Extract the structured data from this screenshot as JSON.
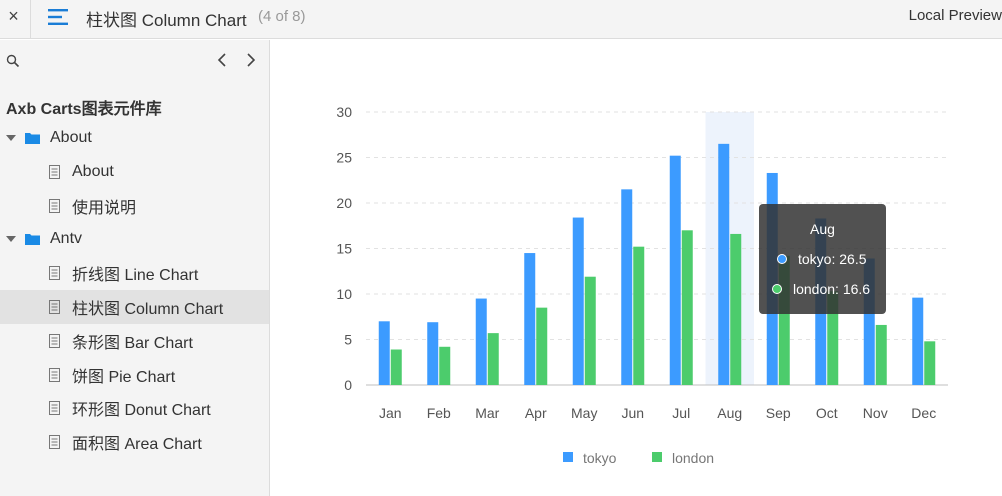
{
  "topbar": {
    "close_label": "×",
    "title": "柱状图 Column Chart",
    "count": "(4 of 8)",
    "right_label": "Local Preview"
  },
  "sidebar": {
    "project_title": "Axb Carts图表元件库",
    "tree": [
      {
        "type": "folder",
        "label": "About"
      },
      {
        "type": "page",
        "label": "About"
      },
      {
        "type": "page",
        "label": "使用说明"
      },
      {
        "type": "folder",
        "label": "Antv"
      },
      {
        "type": "page",
        "label": "折线图 Line Chart"
      },
      {
        "type": "page",
        "label": "柱状图 Column Chart",
        "selected": true
      },
      {
        "type": "page",
        "label": "条形图 Bar Chart"
      },
      {
        "type": "page",
        "label": "饼图 Pie Chart"
      },
      {
        "type": "page",
        "label": "环形图 Donut Chart"
      },
      {
        "type": "page",
        "label": "面积图 Area Chart"
      }
    ]
  },
  "colors": {
    "tokyo": "#3c9bff",
    "london": "#4ccc6c",
    "folder": "#1a8ae5",
    "menu_icon": "#1a7dd6"
  },
  "chart_data": {
    "type": "bar",
    "categories": [
      "Jan",
      "Feb",
      "Mar",
      "Apr",
      "May",
      "Jun",
      "Jul",
      "Aug",
      "Sep",
      "Oct",
      "Nov",
      "Dec"
    ],
    "series": [
      {
        "name": "tokyo",
        "values": [
          7.0,
          6.9,
          9.5,
          14.5,
          18.4,
          21.5,
          25.2,
          26.5,
          23.3,
          18.3,
          13.9,
          9.6
        ]
      },
      {
        "name": "london",
        "values": [
          3.9,
          4.2,
          5.7,
          8.5,
          11.9,
          15.2,
          17.0,
          16.6,
          14.2,
          10.3,
          6.6,
          4.8
        ]
      }
    ],
    "yticks": [
      0,
      5,
      10,
      15,
      20,
      25,
      30
    ],
    "ylim": [
      0,
      30
    ],
    "grid": true,
    "legend": "bottom",
    "highlight_index": 7
  },
  "tooltip": {
    "title": "Aug",
    "items": [
      {
        "label": "tokyo: 26.5"
      },
      {
        "label": "london: 16.6"
      }
    ]
  }
}
